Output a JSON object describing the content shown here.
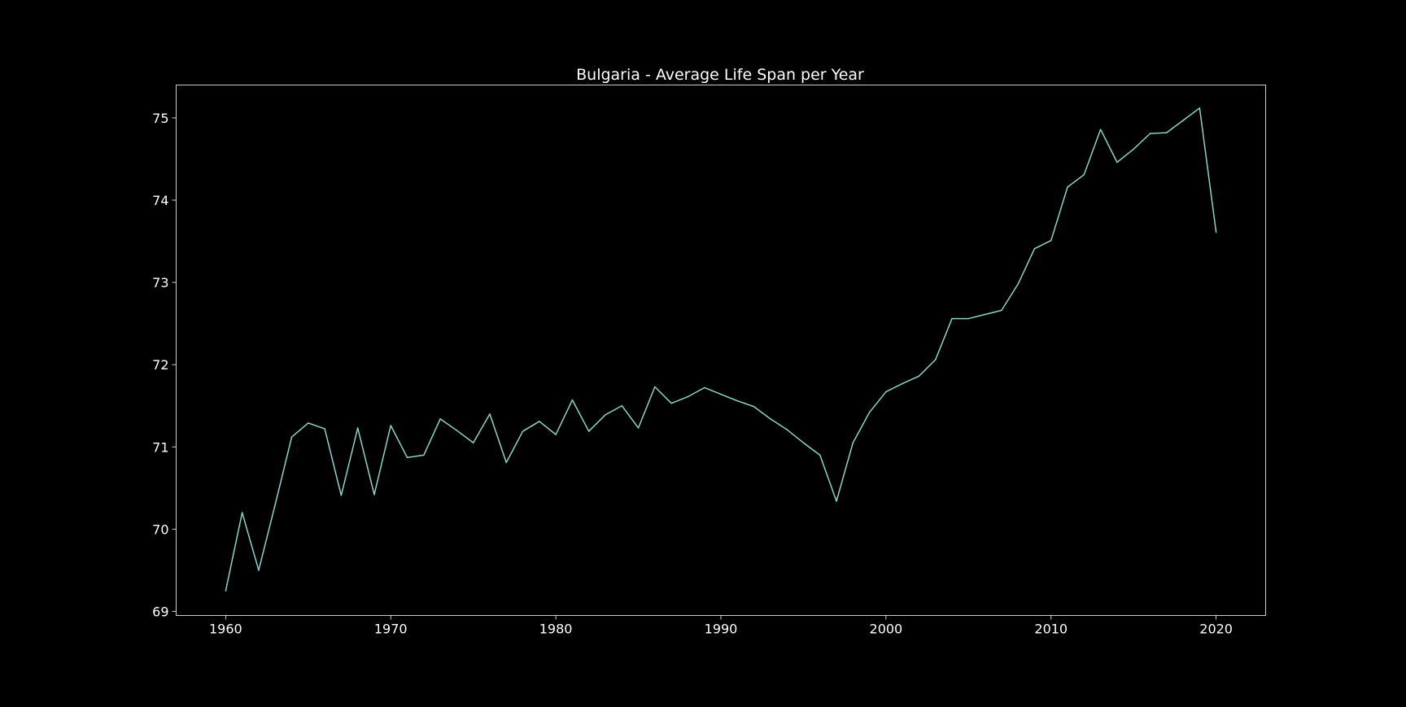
{
  "chart_data": {
    "type": "line",
    "title": "Bulgaria - Average Life Span per Year",
    "xlabel": "",
    "ylabel": "",
    "xlim": [
      1957,
      2023
    ],
    "ylim": [
      68.95,
      75.4
    ],
    "xticks": [
      1960,
      1970,
      1980,
      1990,
      2000,
      2010,
      2020
    ],
    "yticks": [
      69,
      70,
      71,
      72,
      73,
      74,
      75
    ],
    "grid": false,
    "legend": "none",
    "colors": {
      "background": "#000000",
      "axes": "#ffffff",
      "text": "#ffffff",
      "line": "#8dd3c7"
    },
    "series": [
      {
        "x": [
          1960,
          1961,
          1962,
          1963,
          1964,
          1965,
          1966,
          1967,
          1968,
          1969,
          1970,
          1971,
          1972,
          1973,
          1974,
          1975,
          1976,
          1977,
          1978,
          1979,
          1980,
          1981,
          1982,
          1983,
          1984,
          1985,
          1986,
          1987,
          1988,
          1989,
          1990,
          1991,
          1992,
          1993,
          1994,
          1995,
          1996,
          1997,
          1998,
          1999,
          2000,
          2001,
          2002,
          2003,
          2004,
          2005,
          2006,
          2007,
          2008,
          2009,
          2010,
          2011,
          2012,
          2013,
          2014,
          2015,
          2016,
          2017,
          2018,
          2019,
          2020
        ],
        "values": [
          69.25,
          70.2,
          69.5,
          70.3,
          71.12,
          71.29,
          71.22,
          70.41,
          71.23,
          70.42,
          71.26,
          70.87,
          70.9,
          71.34,
          71.2,
          71.05,
          71.4,
          70.81,
          71.19,
          71.31,
          71.15,
          71.57,
          71.19,
          71.39,
          71.5,
          71.23,
          71.73,
          71.53,
          71.61,
          71.72,
          71.64,
          71.56,
          71.49,
          71.34,
          71.21,
          71.05,
          70.9,
          70.34,
          71.05,
          71.42,
          71.67,
          71.77,
          71.86,
          72.06,
          72.56,
          72.56,
          72.61,
          72.66,
          72.98,
          73.41,
          73.51,
          74.16,
          74.31,
          74.86,
          74.46,
          74.62,
          74.81,
          74.82,
          74.97,
          75.12,
          73.61
        ]
      }
    ]
  }
}
